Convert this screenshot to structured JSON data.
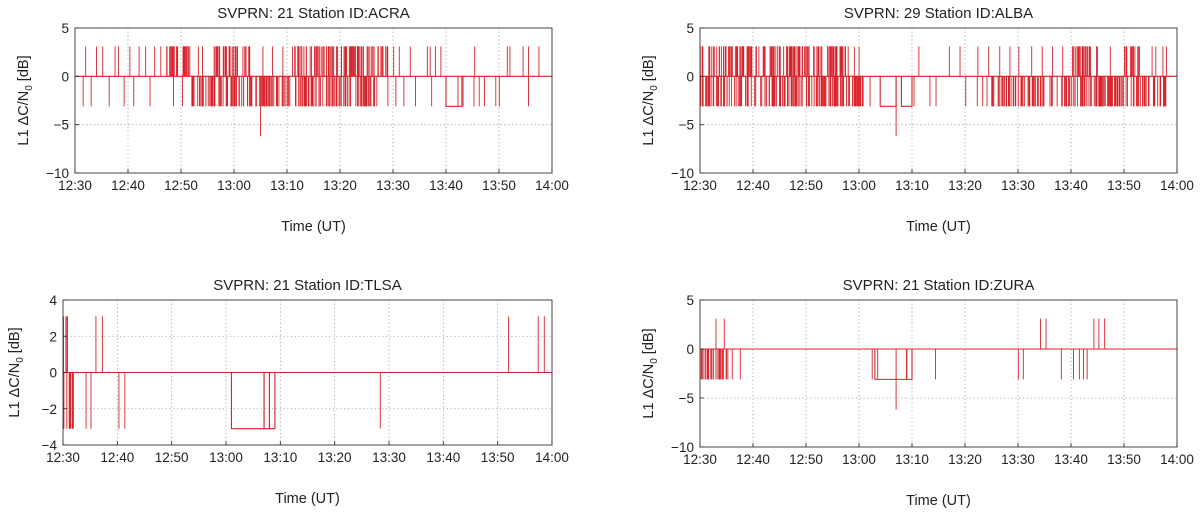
{
  "chart_data": [
    {
      "type": "line",
      "title": "SVPRN: 21  Station ID:ACRA",
      "xlabel": "Time (UT)",
      "ylabel": "L1 ΔC/N0 [dB]",
      "ylabel_main": "L1 ΔC/N",
      "ylabel_sub": "0",
      "ylabel_unit": " [dB]",
      "xlim": [
        "12:30",
        "14:00"
      ],
      "ylim": [
        -10,
        5
      ],
      "xticks": [
        "12:30",
        "12:40",
        "12:50",
        "13:00",
        "13:10",
        "13:20",
        "13:30",
        "13:40",
        "13:50",
        "14:00"
      ],
      "yticks": [
        -10,
        -5,
        0,
        5
      ],
      "grid": true,
      "color": "#d7232b",
      "baseline": 0,
      "up_level": 3.1,
      "down_level": -3.1,
      "dense_up": [
        [
          "12:47",
          "12:52"
        ],
        [
          "12:56",
          "13:03"
        ],
        [
          "13:11",
          "13:29"
        ]
      ],
      "dense_down": [
        [
          "12:52",
          "13:27"
        ]
      ],
      "up_spikes": [
        "12:32",
        "12:34",
        "12:35",
        "12:37",
        "12:38",
        "12:40",
        "12:42",
        "12:43",
        "12:45",
        "12:46",
        "12:53",
        "12:54",
        "13:05",
        "13:07",
        "13:09",
        "13:30",
        "13:31",
        "13:33",
        "13:36",
        "13:37",
        "13:38",
        "13:39",
        "13:45",
        "13:51",
        "13:52",
        "13:54",
        "13:55",
        "13:57"
      ],
      "down_spikes": [
        "12:31",
        "12:33",
        "12:36",
        "12:39",
        "12:41",
        "12:44",
        "12:48",
        "12:50",
        "13:29",
        "13:30",
        "13:32",
        "13:34",
        "13:37",
        "13:42",
        "13:43",
        "13:45",
        "13:46",
        "13:47",
        "13:49",
        "13:50",
        "13:55"
      ],
      "down_blocks": [
        [
          "13:40",
          "13:43"
        ]
      ],
      "extreme_dips": [
        {
          "t": "13:05",
          "v": -6.2
        }
      ]
    },
    {
      "type": "line",
      "title": "SVPRN: 29  Station ID:ALBA",
      "xlabel": "Time (UT)",
      "ylabel": "L1 ΔC/N0 [dB]",
      "ylabel_main": "L1 ΔC/N",
      "ylabel_sub": "0",
      "ylabel_unit": " [dB]",
      "xlim": [
        "12:30",
        "14:00"
      ],
      "ylim": [
        -10,
        5
      ],
      "xticks": [
        "12:30",
        "12:40",
        "12:50",
        "13:00",
        "13:10",
        "13:20",
        "13:30",
        "13:40",
        "13:50",
        "14:00"
      ],
      "yticks": [
        -10,
        -5,
        0,
        5
      ],
      "grid": true,
      "color": "#d7232b",
      "baseline": 0,
      "up_level": 3.1,
      "down_level": -3.1,
      "dense_up": [
        [
          "12:30",
          "12:40"
        ],
        [
          "12:40",
          "12:58"
        ],
        [
          "13:40",
          "13:45"
        ],
        [
          "13:50",
          "13:53"
        ]
      ],
      "dense_down": [
        [
          "12:30",
          "13:01"
        ],
        [
          "13:25",
          "13:35"
        ],
        [
          "13:36",
          "13:58"
        ]
      ],
      "up_spikes": [
        "12:59",
        "13:00",
        "13:11",
        "13:17",
        "13:19",
        "13:22",
        "13:24",
        "13:26",
        "13:28",
        "13:30",
        "13:32",
        "13:34",
        "13:36",
        "13:38",
        "13:47",
        "13:55",
        "13:56",
        "13:57",
        "13:58"
      ],
      "down_spikes": [
        "13:02",
        "13:10",
        "13:13",
        "13:14",
        "13:20",
        "13:22",
        "13:23",
        "13:24"
      ],
      "down_blocks": [
        [
          "13:04",
          "13:07"
        ],
        [
          "13:08",
          "13:10"
        ]
      ],
      "extreme_dips": [
        {
          "t": "13:07",
          "v": -6.2
        }
      ]
    },
    {
      "type": "line",
      "title": "SVPRN: 21  Station ID:TLSA",
      "xlabel": "Time (UT)",
      "ylabel": "L1 ΔC/N0 [dB]",
      "ylabel_main": "L1 ΔC/N",
      "ylabel_sub": "0",
      "ylabel_unit": " [dB]",
      "xlim": [
        "12:30",
        "14:00"
      ],
      "ylim": [
        -4,
        4
      ],
      "xticks": [
        "12:30",
        "12:40",
        "12:50",
        "13:00",
        "13:10",
        "13:20",
        "13:30",
        "13:40",
        "13:50",
        "14:00"
      ],
      "yticks": [
        -4,
        -2,
        0,
        2,
        4
      ],
      "grid": true,
      "color": "#d7232b",
      "baseline": 0,
      "up_level": 3.1,
      "down_level": -3.1,
      "dense_up": [
        [
          "12:30",
          "12:31"
        ]
      ],
      "dense_down": [
        [
          "12:30",
          "12:32"
        ]
      ],
      "up_spikes": [
        "12:36",
        "12:37",
        "13:52",
        "13:57",
        "13:58"
      ],
      "down_spikes": [
        "12:34",
        "12:35",
        "12:40",
        "12:41",
        "13:28"
      ],
      "down_blocks": [
        [
          "13:01",
          "13:07"
        ],
        [
          "13:07",
          "13:08"
        ],
        [
          "13:08",
          "13:09"
        ]
      ],
      "extreme_dips": []
    },
    {
      "type": "line",
      "title": "SVPRN: 21  Station ID:ZURA",
      "xlabel": "Time (UT)",
      "ylabel": "L1 ΔC/N0 [dB]",
      "ylabel_main": "L1 ΔC/N",
      "ylabel_sub": "0",
      "ylabel_unit": " [dB]",
      "xlim": [
        "12:30",
        "14:00"
      ],
      "ylim": [
        -10,
        5
      ],
      "xticks": [
        "12:30",
        "12:40",
        "12:50",
        "13:00",
        "13:10",
        "13:20",
        "13:30",
        "13:40",
        "13:50",
        "14:00"
      ],
      "yticks": [
        -10,
        -5,
        0,
        5
      ],
      "grid": true,
      "color": "#d7232b",
      "baseline": 0,
      "up_level": 3.1,
      "down_level": -3.1,
      "dense_up": [],
      "dense_down": [
        [
          "12:30",
          "12:35"
        ]
      ],
      "up_spikes": [
        "12:33",
        "12:34",
        "13:34",
        "13:35",
        "13:44",
        "13:45",
        "13:46"
      ],
      "down_spikes": [
        "12:35",
        "12:36",
        "12:37",
        "13:02",
        "13:03",
        "13:14",
        "13:30",
        "13:31",
        "13:38",
        "13:40",
        "13:41",
        "13:42",
        "13:43"
      ],
      "down_blocks": [
        [
          "13:03",
          "13:09"
        ],
        [
          "13:09",
          "13:10"
        ]
      ],
      "extreme_dips": [
        {
          "t": "13:07",
          "v": -6.2
        }
      ]
    }
  ]
}
